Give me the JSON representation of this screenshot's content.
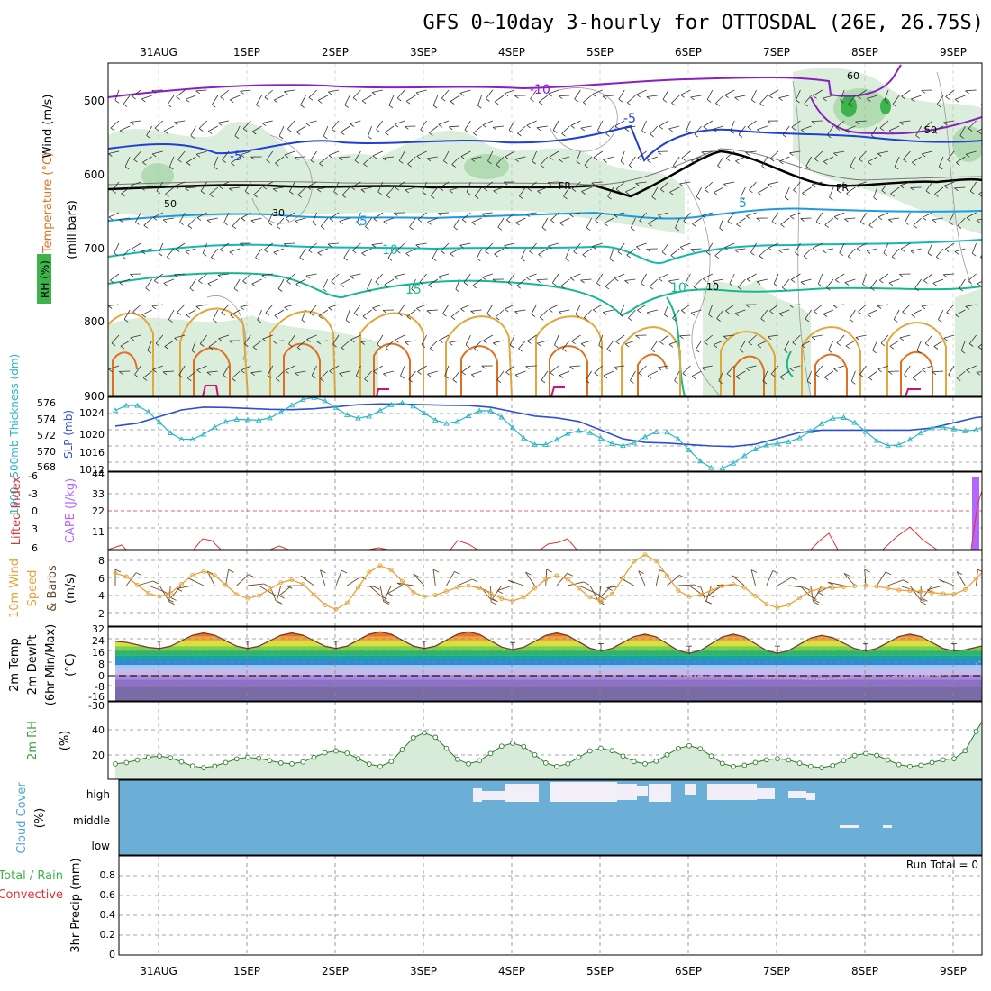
{
  "title": "GFS 0~10day 3-hourly for OTTOSDAL (26E, 26.75S)",
  "date_ticks": [
    "31AUG",
    "1SEP",
    "2SEP",
    "3SEP",
    "4SEP",
    "5SEP",
    "6SEP",
    "7SEP",
    "8SEP",
    "9SEP"
  ],
  "upper_panel": {
    "ylabel_units": "(millibars)",
    "ylabel_wind": "Wind (m/s)",
    "ylabel_temp": "Temperature (°C)",
    "ylabel_rh": "RH (%)",
    "pressure_ticks": [
      "500",
      "600",
      "700",
      "800",
      "900"
    ],
    "contour_labels": [
      "-10",
      "-5",
      "-5",
      "FR",
      "FR",
      "-5",
      "5",
      "10",
      "15",
      "10",
      "5"
    ],
    "rh_labels": [
      "50",
      "30",
      "50",
      "10",
      "60"
    ]
  },
  "thickness_panel": {
    "ylabel_left": "1000~500mb Thickness (dm)",
    "ylabel_right": "SLP (mb)",
    "thk_ticks": [
      "576",
      "574",
      "572",
      "570",
      "568"
    ],
    "slp_ticks": [
      "1024",
      "1020",
      "1016",
      "1012"
    ]
  },
  "cape_panel": {
    "ylabel_left": "Lifted Index",
    "ylabel_right": "CAPE (J/kg)",
    "li_ticks": [
      "-6",
      "-3",
      "0",
      "3",
      "6"
    ],
    "cape_ticks": [
      "44",
      "33",
      "22",
      "11"
    ]
  },
  "wind_panel": {
    "ylabel_a": "10m Wind",
    "ylabel_b": "Speed",
    "ylabel_c": "& Barbs",
    "ylabel_units": "(m/s)",
    "ticks": [
      "8",
      "6",
      "4",
      "2"
    ]
  },
  "temp_panel": {
    "ylabel_a": "2m Temp",
    "ylabel_b": "2m DewPt",
    "ylabel_c": "(6hr Min/Max)",
    "ylabel_units": "(°C)",
    "ticks": [
      "32",
      "24",
      "16",
      "8",
      "0",
      "-8",
      "-16",
      "-30"
    ]
  },
  "rh_panel": {
    "ylabel": "2m RH",
    "ylabel_units": "(%)",
    "ticks": [
      "40",
      "20"
    ]
  },
  "cloud_panel": {
    "ylabel": "Cloud Cover",
    "ylabel_units": "(%)",
    "levels": [
      "high",
      "middle",
      "low"
    ]
  },
  "precip_panel": {
    "ylabel_a": "Total / Rain",
    "ylabel_b": "Convective",
    "ylabel_c": "3hr Precip (mm)",
    "ticks": [
      "0.8",
      "0.6",
      "0.4",
      "0.2",
      "0"
    ],
    "run_total": "Run Total = 0"
  },
  "colors": {
    "thickness": "#2e4fd0",
    "slp": "#2ab5c5",
    "temp_fill": "#5fc45a",
    "rh_fill": "#3a9d3a",
    "cloud": "#6baed6",
    "wind": "#e8a23a",
    "li": "#dd3333",
    "cape": "#b266ff"
  },
  "chart_data": [
    {
      "type": "line",
      "name": "thickness_slp",
      "x_hours_from_start": [
        0,
        24,
        48,
        72,
        96,
        120,
        144,
        168,
        192,
        216,
        240
      ],
      "series": [
        {
          "name": "1000~500mb Thickness (dm)",
          "values": [
            572.5,
            574.8,
            574.5,
            575.2,
            575.0,
            573.5,
            570.5,
            570.0,
            572.0,
            572.0,
            573.8
          ]
        },
        {
          "name": "SLP (mb)",
          "values": [
            1023.5,
            1019.0,
            1024.5,
            1023.5,
            1022.5,
            1018.0,
            1018.5,
            1013.5,
            1021.0,
            1018.0,
            1022.0
          ]
        }
      ],
      "ylim_left": [
        567,
        576
      ],
      "ylim_right": [
        1012,
        1026
      ]
    },
    {
      "type": "line",
      "name": "10m_wind_speed",
      "x_hours_from_start": [
        0,
        12,
        24,
        36,
        48,
        60,
        72,
        84,
        96,
        108,
        120,
        132,
        144,
        156,
        168,
        180,
        192,
        204,
        216,
        228,
        240
      ],
      "values": [
        6.3,
        3.5,
        6.5,
        3.3,
        5.5,
        2.0,
        7.2,
        3.5,
        4.8,
        3.0,
        6.0,
        3.0,
        8.5,
        3.5,
        5.0,
        2.2,
        4.5,
        4.8,
        4.2,
        3.8,
        7.5
      ],
      "ylim": [
        0,
        9
      ]
    },
    {
      "type": "area",
      "name": "2m_rh",
      "x_hours_from_start": [
        0,
        12,
        24,
        36,
        48,
        60,
        72,
        84,
        96,
        108,
        120,
        132,
        144,
        156,
        168,
        180,
        192,
        204,
        216,
        228,
        240
      ],
      "values": [
        12,
        18,
        9,
        17,
        12,
        22,
        10,
        36,
        12,
        28,
        10,
        24,
        12,
        26,
        10,
        16,
        9,
        20,
        10,
        16,
        58
      ],
      "ylim": [
        0,
        60
      ]
    },
    {
      "type": "area",
      "name": "2m_temp_dewpt",
      "x_hours_from_start": [
        0,
        12,
        24,
        36,
        48,
        60,
        72,
        84,
        96,
        108,
        120,
        132,
        144,
        156,
        168,
        180,
        192,
        204,
        216,
        228,
        240
      ],
      "series": [
        {
          "name": "2m Temp",
          "values": [
            20,
            14,
            27,
            14,
            27,
            14,
            28,
            14,
            28,
            13,
            27,
            12,
            26,
            10,
            26,
            10,
            25,
            12,
            26,
            12,
            18
          ]
        },
        {
          "name": "2m DewPt",
          "values": [
            -7,
            -8,
            -6,
            -8,
            -7,
            -4,
            -2,
            -5,
            -8,
            -7,
            -6,
            -7,
            -4,
            -9,
            -10,
            -11,
            -12,
            -10,
            -9,
            -8,
            10
          ]
        }
      ],
      "ylim": [
        -30,
        32
      ]
    }
  ]
}
